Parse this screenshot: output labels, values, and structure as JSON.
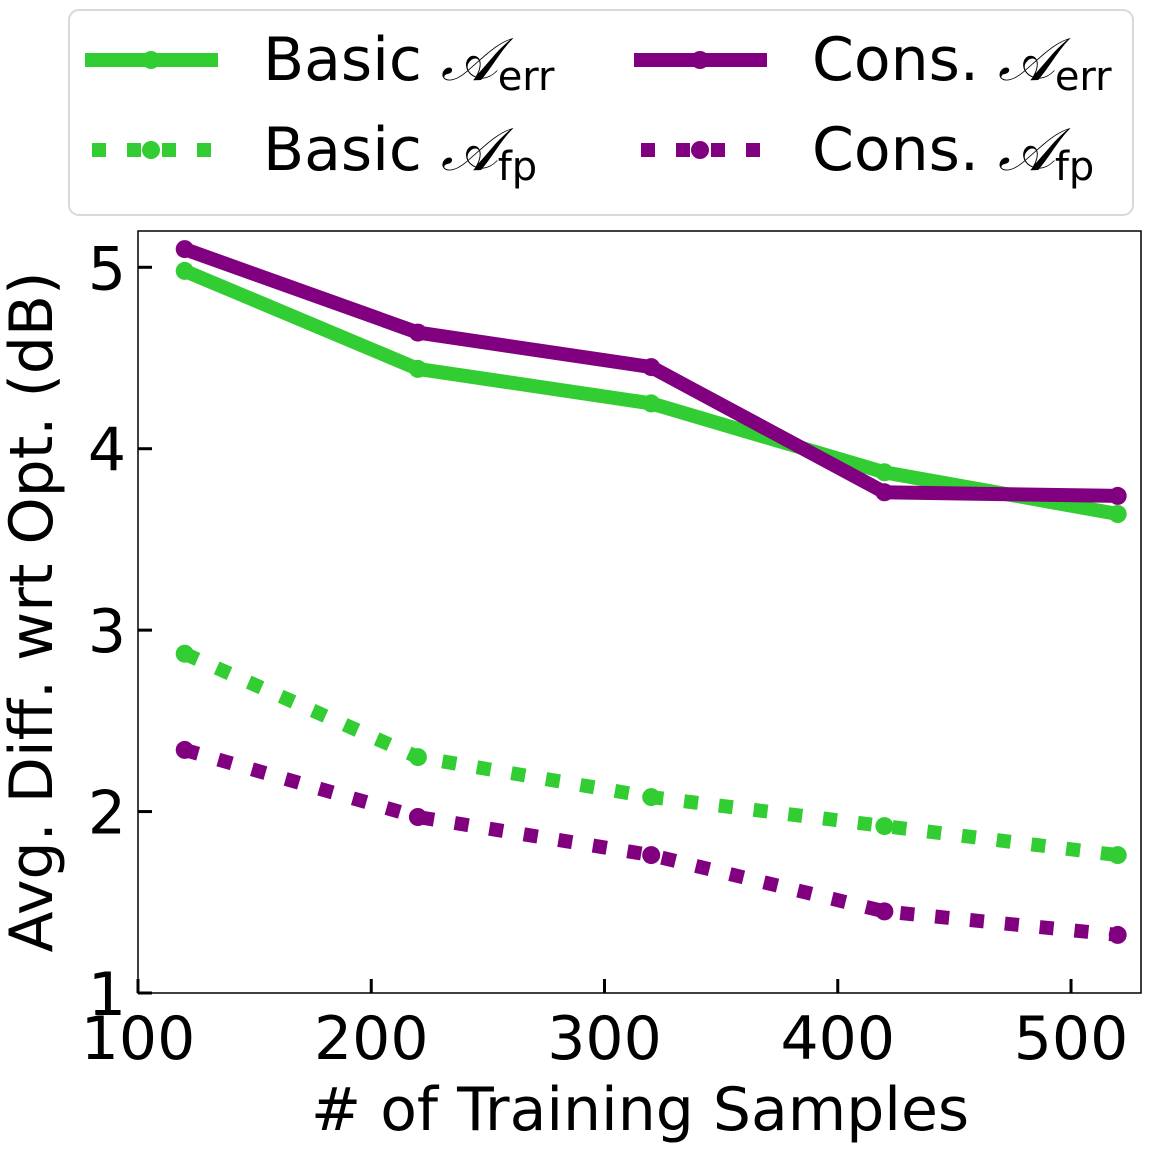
{
  "chart_data": {
    "type": "line",
    "xlabel": "# of Training Samples",
    "ylabel": "Avg. Diff. wrt Opt. (dB)",
    "x": [
      120,
      220,
      320,
      420,
      520
    ],
    "xlim": [
      100,
      530
    ],
    "ylim": [
      1,
      5.2
    ],
    "xticks": [
      100,
      200,
      300,
      400,
      500
    ],
    "yticks": [
      1,
      2,
      3,
      4,
      5
    ],
    "grid": false,
    "legend_position": "top",
    "series": [
      {
        "key": "basic_err",
        "name": "Basic 𝒜err",
        "name_main": "Basic ",
        "name_script": "𝒜",
        "name_sub": "err",
        "color": "#32cd32",
        "style": "solid",
        "values": [
          4.98,
          4.44,
          4.25,
          3.87,
          3.64
        ]
      },
      {
        "key": "cons_err",
        "name": "Cons. 𝒜err",
        "name_main": "Cons. ",
        "name_script": "𝒜",
        "name_sub": "err",
        "color": "#800080",
        "style": "solid",
        "values": [
          5.1,
          4.64,
          4.45,
          3.76,
          3.74
        ]
      },
      {
        "key": "basic_fp",
        "name": "Basic 𝒜fp",
        "name_main": "Basic ",
        "name_script": "𝒜",
        "name_sub": "fp",
        "color": "#32cd32",
        "style": "dotted",
        "values": [
          2.87,
          2.3,
          2.08,
          1.92,
          1.76
        ]
      },
      {
        "key": "cons_fp",
        "name": "Cons. 𝒜fp",
        "name_main": "Cons. ",
        "name_script": "𝒜",
        "name_sub": "fp",
        "color": "#800080",
        "style": "dotted",
        "values": [
          2.34,
          1.97,
          1.76,
          1.45,
          1.32
        ]
      }
    ]
  }
}
